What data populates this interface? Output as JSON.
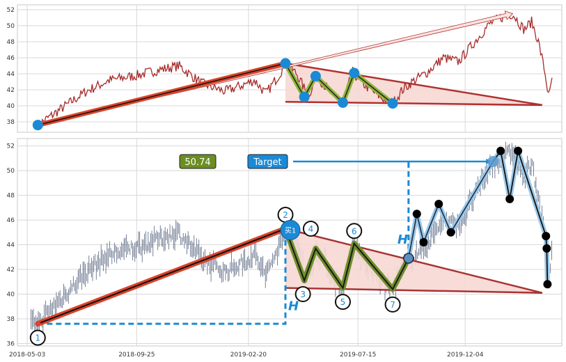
{
  "chart_data": [
    {
      "type": "line",
      "panel": "top",
      "title": "",
      "ylim": [
        36.7,
        52.6
      ],
      "y_ticks": [
        "52",
        "50",
        "48",
        "46",
        "44",
        "42",
        "40",
        "38"
      ],
      "y_tick_values": [
        52,
        50,
        48,
        46,
        44,
        42,
        40,
        38
      ],
      "x_range": [
        "2018-04-20",
        "2020-04-10"
      ],
      "grid": true,
      "colors": {
        "price": "#a52a2a",
        "trend": "#b03030",
        "triangle_fill": "#f6d8d4",
        "pivot": "#1a8ad6",
        "pattern": "#8fb53a"
      },
      "price_anchors": [
        [
          "2018-05-17",
          37.6
        ],
        [
          "2018-06-15",
          39.5
        ],
        [
          "2018-07-20",
          41.8
        ],
        [
          "2018-08-20",
          43.2
        ],
        [
          "2018-09-25",
          43.8
        ],
        [
          "2018-10-25",
          44.5
        ],
        [
          "2018-11-20",
          45.0
        ],
        [
          "2018-12-20",
          42.8
        ],
        [
          "2019-01-20",
          41.8
        ],
        [
          "2019-02-10",
          42.5
        ],
        [
          "2019-02-28",
          43.2
        ],
        [
          "2019-03-15",
          41.5
        ],
        [
          "2019-04-01",
          43.8
        ],
        [
          "2019-04-10",
          45.3
        ],
        [
          "2019-04-25",
          44.0
        ],
        [
          "2019-05-10",
          41.2
        ],
        [
          "2019-05-22",
          43.7
        ],
        [
          "2019-06-10",
          41.5
        ],
        [
          "2019-06-25",
          40.4
        ],
        [
          "2019-07-08",
          44.2
        ],
        [
          "2019-07-25",
          42.5
        ],
        [
          "2019-08-15",
          41.0
        ],
        [
          "2019-08-30",
          40.3
        ],
        [
          "2019-09-12",
          42.0
        ],
        [
          "2019-09-25",
          43.0
        ],
        [
          "2019-10-15",
          44.2
        ],
        [
          "2019-11-05",
          46.0
        ],
        [
          "2019-11-25",
          45.5
        ],
        [
          "2019-12-15",
          47.8
        ],
        [
          "2020-01-05",
          50.2
        ],
        [
          "2020-01-20",
          51.0
        ],
        [
          "2020-02-05",
          51.5
        ],
        [
          "2020-02-20",
          49.5
        ],
        [
          "2020-03-01",
          50.5
        ],
        [
          "2020-03-10",
          48.0
        ],
        [
          "2020-03-18",
          44.5
        ],
        [
          "2020-03-24",
          40.9
        ],
        [
          "2020-03-28",
          43.5
        ]
      ],
      "pivots": [
        {
          "x": "2018-05-17",
          "y": 37.6
        },
        {
          "x": "2019-04-10",
          "y": 45.3
        },
        {
          "x": "2019-05-05",
          "y": 41.1
        },
        {
          "x": "2019-05-20",
          "y": 43.7
        },
        {
          "x": "2019-06-25",
          "y": 40.4
        },
        {
          "x": "2019-07-10",
          "y": 44.1
        },
        {
          "x": "2019-08-30",
          "y": 40.3
        }
      ],
      "trend_from": {
        "x": "2018-05-17",
        "y": 37.6
      },
      "trend_to": {
        "x": "2019-04-10",
        "y": 45.3
      },
      "long_arrow_to": {
        "x": "2020-02-05",
        "y": 51.5
      },
      "triangle": [
        {
          "x": "2019-04-10",
          "y": 45.3
        },
        {
          "x": "2020-03-15",
          "y": 40.1
        },
        {
          "x": "2019-04-10",
          "y": 40.5
        }
      ]
    },
    {
      "type": "ohlc",
      "panel": "bottom",
      "title": "",
      "ylim": [
        35.8,
        52.6
      ],
      "y_ticks": [
        "52",
        "50",
        "48",
        "46",
        "44",
        "42",
        "40",
        "38",
        "36"
      ],
      "y_tick_values": [
        52,
        50,
        48,
        46,
        44,
        42,
        40,
        38,
        36
      ],
      "x_ticks": [
        "2018-05-03",
        "2018-09-25",
        "2019-02-20",
        "2019-07-15",
        "2019-12-04"
      ],
      "x_range": [
        "2018-04-20",
        "2020-04-10"
      ],
      "grid": true,
      "colors": {
        "bars": "#3a4a6a",
        "trend_outer": "#d9452b",
        "trend_inner": "#111111",
        "pattern_outer": "#6f8f2a",
        "pattern_inner": "#1a1a1a",
        "buy_marker": "#1a8ad6",
        "h_line": "#1a8ad6",
        "target_box": "#1a8ad6",
        "value_box": "#6b8e23",
        "triangle": "#a83232",
        "triangle_fill": "#f6d8d4",
        "up_leg": "#1a8ad6",
        "peaks": "#000000"
      },
      "pivot_labels": [
        {
          "label": "1",
          "x": "2018-05-17",
          "y": 37.6
        },
        {
          "label": "2",
          "x": "2019-04-10",
          "y": 45.3
        },
        {
          "label": "3",
          "x": "2019-05-05",
          "y": 41.1
        },
        {
          "label": "4",
          "x": "2019-05-20",
          "y": 43.7
        },
        {
          "label": "5",
          "x": "2019-06-25",
          "y": 40.5
        },
        {
          "label": "6",
          "x": "2019-07-10",
          "y": 44.1
        },
        {
          "label": "7",
          "x": "2019-08-30",
          "y": 40.4
        }
      ],
      "buy_marker": {
        "label": "买1",
        "x": "2019-04-10",
        "y": 45.3
      },
      "breakout": {
        "x": "2019-09-20",
        "y": 42.9
      },
      "target": {
        "label": "Target",
        "value": "50.74",
        "y": 50.74,
        "x_end": "2020-01-10"
      },
      "h_labels": [
        "H",
        "H"
      ],
      "h_first": {
        "x_from": "2018-05-17",
        "x_to": "2019-04-10",
        "y_low": 37.6,
        "y_high": 45.3
      },
      "h_second": {
        "x": "2019-09-20",
        "y_low": 42.9,
        "y_high": 50.74
      },
      "up_leg_path": [
        [
          "2019-09-20",
          42.9
        ],
        [
          "2019-10-01",
          46.5
        ],
        [
          "2019-10-10",
          44.2
        ],
        [
          "2019-10-30",
          47.3
        ],
        [
          "2019-11-15",
          45.0
        ],
        [
          "2020-01-10",
          50.74
        ]
      ],
      "black_points": [
        {
          "x": "2019-10-01",
          "y": 46.5
        },
        {
          "x": "2019-10-10",
          "y": 44.2
        },
        {
          "x": "2019-10-30",
          "y": 47.3
        },
        {
          "x": "2019-11-15",
          "y": 45.0
        },
        {
          "x": "2020-01-20",
          "y": 51.6
        },
        {
          "x": "2020-02-01",
          "y": 47.7
        },
        {
          "x": "2020-02-12",
          "y": 51.6
        },
        {
          "x": "2020-03-20",
          "y": 44.7
        },
        {
          "x": "2020-03-21",
          "y": 43.7
        },
        {
          "x": "2020-03-22",
          "y": 40.8
        }
      ],
      "peak_path": [
        [
          "2020-01-10",
          50.74
        ],
        [
          "2020-01-20",
          51.6
        ],
        [
          "2020-02-01",
          47.7
        ],
        [
          "2020-02-12",
          51.6
        ],
        [
          "2020-03-20",
          44.7
        ],
        [
          "2020-03-21",
          43.7
        ],
        [
          "2020-03-22",
          40.8
        ]
      ]
    }
  ]
}
